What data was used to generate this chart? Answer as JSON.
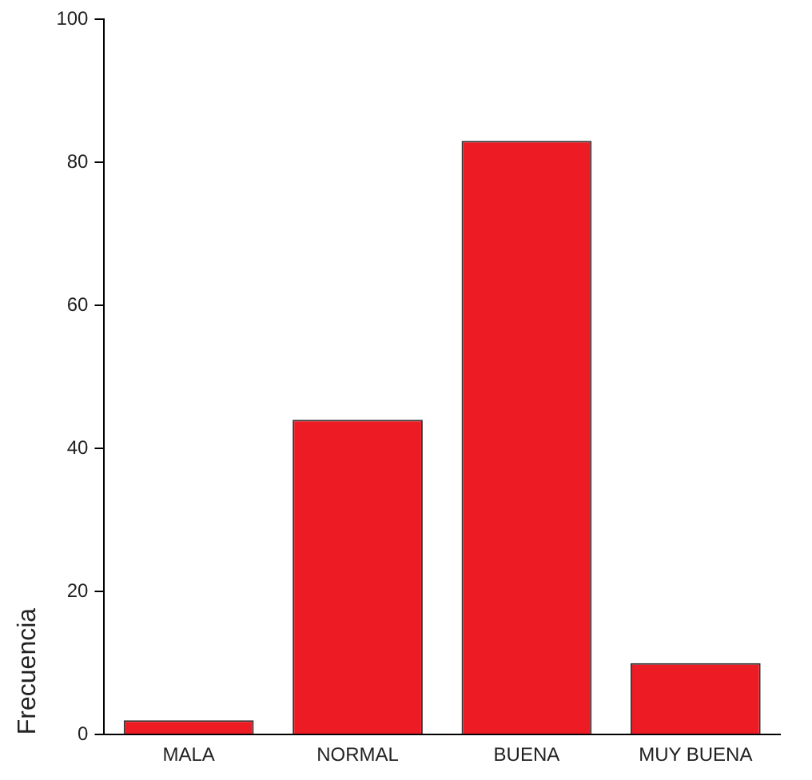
{
  "chart_data": {
    "type": "bar",
    "ylabel": "Frecuencia",
    "categories": [
      "MALA",
      "NORMAL",
      "BUENA",
      "MUY BUENA"
    ],
    "values": [
      2,
      44,
      83,
      10
    ],
    "color": "#ed1c24",
    "ylim": [
      0,
      100
    ],
    "yticks": [
      0,
      20,
      40,
      60,
      80,
      100
    ],
    "grid": false,
    "legend": false
  }
}
